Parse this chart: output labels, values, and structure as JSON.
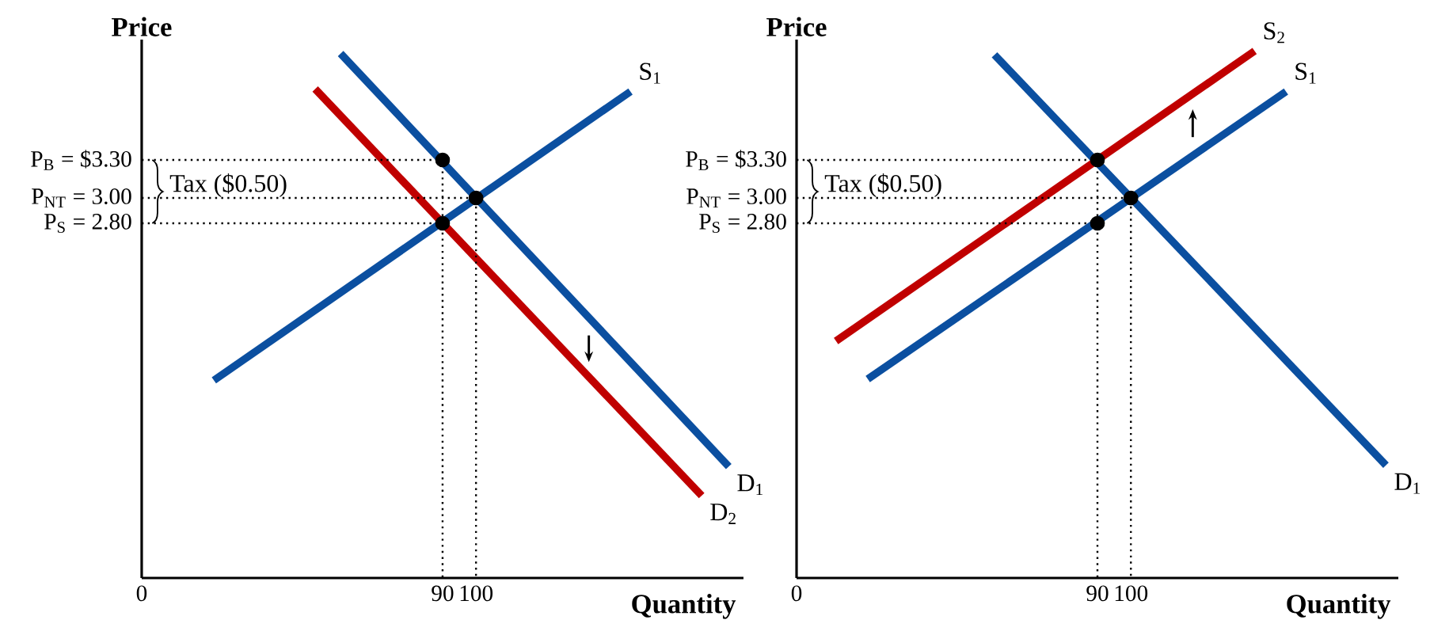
{
  "chart_data": [
    {
      "type": "line",
      "xlabel": "Quantity",
      "ylabel": "Price",
      "xlim": [
        0,
        180
      ],
      "ylim": [
        0,
        4.25
      ],
      "xticks": [
        0,
        90,
        100
      ],
      "yticks": [
        {
          "value": 3.3,
          "label": "P$_{B}$ = $3.30"
        },
        {
          "value": 3.0,
          "label": "P$_{NT}$ = 3.00"
        },
        {
          "value": 2.8,
          "label": "P$_{S}$ = 2.80"
        }
      ],
      "annotations": [
        "Tax ($0.50)"
      ],
      "series": [
        {
          "name": "S$_{1}$",
          "color": "#0b4fa0",
          "x": [
            21.6,
            146.2
          ],
          "values": [
            1.56,
            3.84
          ]
        },
        {
          "name": "D$_{1}$",
          "color": "#0b4fa0",
          "x": [
            59.5,
            175.6
          ],
          "values": [
            4.14,
            0.88
          ]
        },
        {
          "name": "D$_{2}$",
          "color": "#c00000",
          "x": [
            51.9,
            167.5
          ],
          "values": [
            3.86,
            0.65
          ]
        },
        {
          "color": "#000000",
          "line_style": "dotted",
          "x": [
            0,
            90,
            90
          ],
          "values": [
            3.3,
            3.3,
            0
          ]
        },
        {
          "color": "#000000",
          "line_style": "dotted",
          "x": [
            0,
            100,
            100
          ],
          "values": [
            3.0,
            3.0,
            0
          ]
        },
        {
          "color": "#000000",
          "line_style": "dotted",
          "x": [
            0,
            90
          ],
          "values": [
            2.8,
            2.8
          ]
        },
        {
          "type": "scatter",
          "color": "#000000",
          "marker": "circle",
          "x": [
            90,
            100,
            90
          ],
          "values": [
            3.3,
            3.0,
            2.8
          ]
        }
      ]
    },
    {
      "type": "line",
      "xlabel": "Quantity",
      "ylabel": "Price",
      "xlim": [
        0,
        180
      ],
      "ylim": [
        0,
        4.25
      ],
      "xticks": [
        0,
        90,
        100
      ],
      "yticks": [
        {
          "value": 3.3,
          "label": "P$_{B}$ = $3.30"
        },
        {
          "value": 3.0,
          "label": "P$_{NT}$ = 3.00"
        },
        {
          "value": 2.8,
          "label": "P$_{S}$ = 2.80"
        }
      ],
      "annotations": [
        "Tax ($0.50)"
      ],
      "series": [
        {
          "name": "D$_{1}$",
          "color": "#0b4fa0",
          "x": [
            59.2,
            176.3
          ],
          "values": [
            4.13,
            0.89
          ]
        },
        {
          "name": "S$_{1}$",
          "color": "#0b4fa0",
          "x": [
            21.3,
            146.4
          ],
          "values": [
            1.57,
            3.84
          ]
        },
        {
          "name": "S$_{2}$",
          "color": "#c00000",
          "x": [
            11.8,
            137.0
          ],
          "values": [
            1.87,
            4.16
          ]
        },
        {
          "color": "#000000",
          "line_style": "dotted",
          "x": [
            0,
            90,
            90
          ],
          "values": [
            3.3,
            3.3,
            0
          ]
        },
        {
          "color": "#000000",
          "line_style": "dotted",
          "x": [
            0,
            100,
            100
          ],
          "values": [
            3.0,
            3.0,
            0
          ]
        },
        {
          "color": "#000000",
          "line_style": "dotted",
          "x": [
            0,
            90
          ],
          "values": [
            2.8,
            2.8
          ]
        },
        {
          "type": "scatter",
          "color": "#000000",
          "marker": "circle",
          "x": [
            90,
            100,
            90
          ],
          "values": [
            3.3,
            3.0,
            2.8
          ]
        }
      ]
    }
  ]
}
